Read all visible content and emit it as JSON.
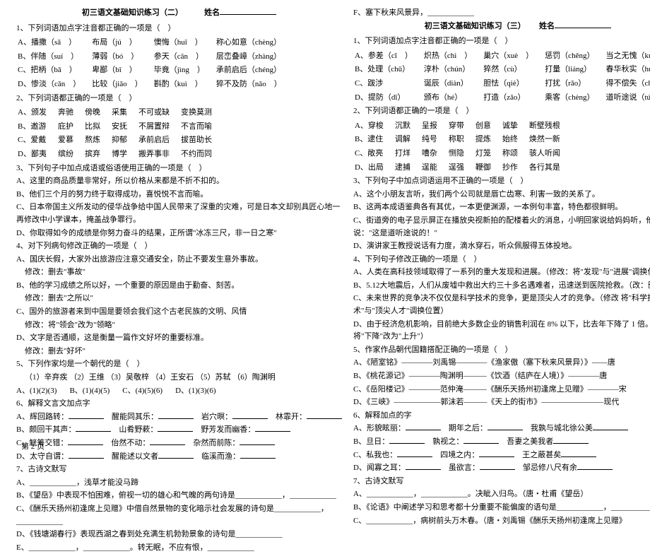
{
  "left": {
    "title": "初三语文基础知识练习（二）",
    "nameLabel": "姓名",
    "q1": "1、下列词语加点字注音都正确的一项是（　）",
    "q1a": [
      "A、播撒（sǎ　）",
      "布局（jú　）",
      "懊悔（huǐ　）",
      "称心如意（chèng）"
    ],
    "q1b": [
      "B、伴随（suí　）",
      "薄弱（bó　）",
      "参天（cān　）",
      "层峦叠嶂（zhàng）"
    ],
    "q1c": [
      "C、把柄（bǎ　）",
      "卑鄙（bǐ　）",
      "毕竟（jìng　）",
      "承前启后（chéng）"
    ],
    "q1d": [
      "D、惨淡（cǎn　）",
      "比较（jiǎo　）",
      "斟酌（kuì　）",
      "猝不及防（nǎo　）"
    ],
    "q2": "2、下列词语都正确的一项是（　）",
    "q2a": [
      "A、颁发",
      "奔驰",
      "傍晚",
      "采集",
      "不可或缺",
      "变换莫测"
    ],
    "q2b": [
      "B、邀游",
      "庇护",
      "比拟",
      "安抚",
      "不屑置辩",
      "不言而喻"
    ],
    "q2c": [
      "C、爱戴",
      "爱慕",
      "熬炼",
      "抑郁",
      "承前启后",
      "拔苗助长"
    ],
    "q2d": [
      "D、鄙夷",
      "缤纷",
      "摈弃",
      "博学",
      "搬弄事非",
      "不约而同"
    ],
    "q3": "3、下列句子中加点成语或俗语使用正确的一项是（　）",
    "q3a": "A、这里的商品质量非常好，所以价格从来都是不折不扣的。",
    "q3b": "B、他们三个月的努力终于取得成功，喜悦悦不言而喻。",
    "q3c": "C、日本帝国主义所发动的侵华战争给中国人民带来了深重的灾难，可是日本文却别具匠心地一再修改中小学课本，掩盖战争罪行。",
    "q3d": "D、你取得如今的成绩是你努力奋斗的结果，正所谓\"冰冻三尺，非一日之寒\"",
    "q4": "4、对下列病句修改正确的一项是（　）",
    "q4a": "A、国庆长假，大家外出旅游应注意交通安全，防止不要发生意外事故。",
    "q4am": "修改：删去\"事故\"",
    "q4b": "B、他的学习成绩之所以好，一个重要的原因是由于勤奋、刻苦。",
    "q4bm": "修改：删去\"之所以\"",
    "q4c": "C、国外的旅游者来到中国是要领会我们这个古老民族的文明、风情",
    "q4cm": "修改：将\"领会\"改为\"领略\"",
    "q4d": "D、文字是否通顺，这是衡量一篇作文好坏的重要标准。",
    "q4dm": "修改：删去\"好坏\"",
    "q5": "5、下列作家均是一个朝代的是（　）",
    "q5list": "（1）辛弃疾 （2）王维 （3）吴敬梓 （4）王安石 （5）苏轼 （6）陶渊明",
    "q5opts": [
      "A、(1)(2)(3)",
      "B、(1)(4)(5)",
      "C、(4)(5)(6)",
      "D、(1)(3)(6)"
    ],
    "q6": "6、解释文言文加点字",
    "q6a": [
      "A、辉回路转：",
      "醒能同其乐：",
      "岩穴暝：",
      "林霏开："
    ],
    "q6b": [
      "B、颇回干其声：",
      "山肴野蔌：",
      "野芳发而幽香："
    ],
    "q6c": [
      "C、觥筹交错：",
      "佁然不动：",
      "杂然而前陈："
    ],
    "q6d": [
      "D、太守自谓：",
      "醒能述以文者",
      "临溪而渔："
    ],
    "q7": "7、古诗文默写",
    "q7a": "A、____________，浅草才能没马蹄",
    "q7b": "B、《望岳》中表现不怕困难，俯视一切的雄心和气魄的两句诗是____________，____________",
    "q7c": "C、《酬乐天扬州初逢席上见赠》中借自然景物的变化暗示社会发展的诗句是____________，____________",
    "q7d": "D、《钱塘湖春行》表现西湖之春到处充满生机勃勃景象的诗句是____________",
    "q7e": "E、____________，____________。转无眠，不应有恨，____________",
    "footer": "第 2 页"
  },
  "right": {
    "pre": "F、塞下秋来风景异，____________",
    "title": "初三语文基础知识练习（三）",
    "nameLabel": "姓名",
    "q1": "1、下列词语加点字注音都正确的一项是（　）",
    "q1a": [
      "A、参差（cī　）",
      "炽热（chì　）",
      "巢穴（xuè　）",
      "惩罚（chěng）",
      "当之无愧（kuì）"
    ],
    "q1b": [
      "B、处理（chǔ）",
      "淳朴（chún）",
      "猝然（cù）",
      "打量（liáng）",
      "春华秋实（huá）"
    ],
    "q1c": [
      "C、跋涉",
      "诞辰（diàn）",
      "胆怯（qiè）",
      "打扰（rǎo）",
      "得不偿失（cháng）"
    ],
    "q1d": [
      "D、提防（dī）",
      "颁布（hé）",
      "打造（zǎo）",
      "乘客（chèng）",
      "道听途说（tú）"
    ],
    "q2": "2、下列词语都正确的一项是（　）",
    "q2a": [
      "A、穿梭",
      "沉默",
      "呈报",
      "穿带",
      "创意",
      "诚挚",
      "断壁残根"
    ],
    "q2b": [
      "B、逮住",
      "调解",
      "纯号",
      "称职",
      "提炼",
      "始终",
      "焕然一新"
    ],
    "q2c": [
      "C、敞亮",
      "打烊",
      "嘈杂",
      "恻隐",
      "灯笼",
      "称颂",
      "骇人听闻"
    ],
    "q2d": [
      "D、出局",
      "逮捕",
      "逞能",
      "逞强",
      "鞭御",
      "抄作",
      "各行其是"
    ],
    "q3": "3、下列句子中加点词语运用不正确的一项是（　）",
    "q3a": "A、这个小朋友言听，我们两个公司就是唇亡齿寒、利害一致的关系了。",
    "q3b": "B、这两本成语鉴典各有其优，一本更便渊源，一本例句丰富，特色都很鲜明。",
    "q3c": "C、街道旁的电子显示屏正在播放央视新拍的配楼着火的消息，小明回家说给妈妈听，他解释说：\"这是道听途说的！\"",
    "q3d": "D、演讲家王教授说话有力度，滴水穿石，听众佩服得五体投地。",
    "q4": "4、下列句子修改正确的一项是（　）",
    "q4a": "A、人类在高科技领域取得了一系列的重大发现和进展。（修改：将\"发现\"与\"进展\"调换位置）",
    "q4b": "B、5.12大地震后，人们从废墟中救出大约三十多名遇难者，迅速送到医院抢救。（改：删\"大约\"）",
    "q4c": "C、未来世界的竞争决不仅仅是科学技术的竞争，更是顶尖人才的竞争。（修改 将\"科学技术\"与\"顶尖人才\"调换位置）",
    "q4d": "D、由于经济危机影响，目前绝大多数企业的销售利润在 8% 以下，比去年下降了 1 倍。（修改：将\"下降\"改为\"上升\"）",
    "q5": "5、作家作品朝代国籍搭配正确的一项是（　）",
    "q5a": "A、《陋室铭》————刘禹锡————《渔家傲（塞下秋来风景异）》——唐",
    "q5b": "B、《桃花源记》————陶渊明———《饮酒（结庐在人境）》————唐",
    "q5c": "C、《岳阳楼记》————范仲淹———《酬乐天扬州初逢席上见赠》————宋",
    "q5d": "D、《三峡》——————郭沫若———《天上的街市》————————现代",
    "q6": "6、解释加点的字",
    "q6a": [
      "A、形貌眩丽：",
      "期年之后：",
      "我孰与城北徐公美"
    ],
    "q6b": [
      "B、旦日：",
      "孰视之：",
      "吾妻之美我者"
    ],
    "q6c": [
      "C、私我也：",
      "四境之内：",
      "王之蔽甚矣"
    ],
    "q6d": [
      "D、闻寡之耳：",
      "虽欲言：",
      "邹忌修八尺有余"
    ],
    "q7": "7、古诗文默写",
    "q7a": "A、____________，____________。决眦入归鸟。（唐・杜甫《望岳）",
    "q7b": "B、《论语》中阐述学习和思考都十分重要不能偏废的语句是____________，____________",
    "q7c": "C、____________，病树前头万木春。（唐・刘禹锡《酬乐天扬州初逢席上见赠》"
  }
}
